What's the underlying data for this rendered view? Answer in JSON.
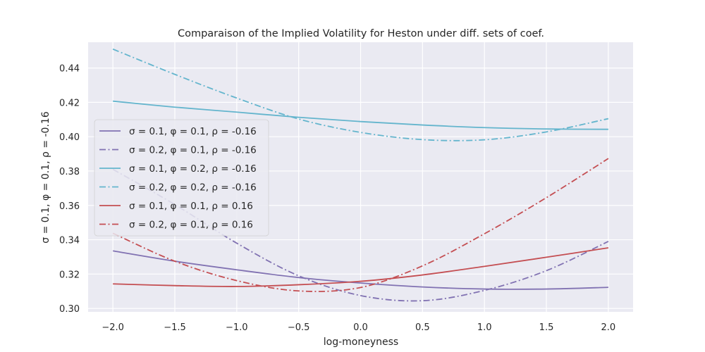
{
  "chart_data": {
    "type": "line",
    "title": "Comparaison of the Implied Volatility for Heston under diff. sets of coef.",
    "xlabel": "log-moneyness",
    "ylabel": "σ =  0.1, φ =  0.1, ρ =  -0.16",
    "xlim": [
      -2.2,
      2.2
    ],
    "ylim": [
      0.298,
      0.455
    ],
    "xticks": [
      -2.0,
      -1.5,
      -1.0,
      -0.5,
      0.0,
      0.5,
      1.0,
      1.5,
      2.0
    ],
    "xtick_labels": [
      "−2.0",
      "−1.5",
      "−1.0",
      "−0.5",
      "0.0",
      "0.5",
      "1.0",
      "1.5",
      "2.0"
    ],
    "yticks": [
      0.3,
      0.32,
      0.34,
      0.36,
      0.38,
      0.4,
      0.42,
      0.44
    ],
    "ytick_labels": [
      "0.30",
      "0.32",
      "0.34",
      "0.36",
      "0.38",
      "0.40",
      "0.42",
      "0.44"
    ],
    "grid": true,
    "legend_position": "center-left",
    "background": "#eaeaf2",
    "x": [
      -2.0,
      -1.5,
      -1.0,
      -0.5,
      0.0,
      0.5,
      1.0,
      1.5,
      2.0
    ],
    "series": [
      {
        "name": "σ =  0.1, φ =  0.1, ρ =  -0.16",
        "color": "#8172b2",
        "dash": "solid",
        "values": [
          0.3335,
          0.3275,
          0.3225,
          0.318,
          0.3148,
          0.3125,
          0.3113,
          0.3113,
          0.3123
        ]
      },
      {
        "name": "σ =  0.2, φ =  0.1, ρ =  -0.16",
        "color": "#8172b2",
        "dash": "dashdot",
        "values": [
          0.381,
          0.3605,
          0.338,
          0.319,
          0.3075,
          0.3045,
          0.3105,
          0.322,
          0.339
        ]
      },
      {
        "name": "σ =  0.1, φ =  0.2, ρ =  -0.16",
        "color": "#64b5cd",
        "dash": "solid",
        "values": [
          0.4207,
          0.4172,
          0.4143,
          0.4113,
          0.4088,
          0.4068,
          0.4053,
          0.4045,
          0.4043
        ]
      },
      {
        "name": "σ =  0.2, φ =  0.2, ρ =  -0.16",
        "color": "#64b5cd",
        "dash": "dashdot",
        "values": [
          0.451,
          0.4363,
          0.4225,
          0.4103,
          0.4025,
          0.3983,
          0.3982,
          0.4028,
          0.4105
        ]
      },
      {
        "name": "σ =  0.1, φ =  0.1, ρ =  0.16",
        "color": "#c44e52",
        "dash": "solid",
        "values": [
          0.3143,
          0.3133,
          0.3128,
          0.3138,
          0.3158,
          0.3195,
          0.3245,
          0.3298,
          0.3353
        ]
      },
      {
        "name": "σ =  0.2, φ =  0.1, ρ =  0.16",
        "color": "#c44e52",
        "dash": "dashdot",
        "values": [
          0.3438,
          0.3275,
          0.3162,
          0.3102,
          0.3122,
          0.3248,
          0.3435,
          0.3645,
          0.3873
        ]
      }
    ]
  }
}
